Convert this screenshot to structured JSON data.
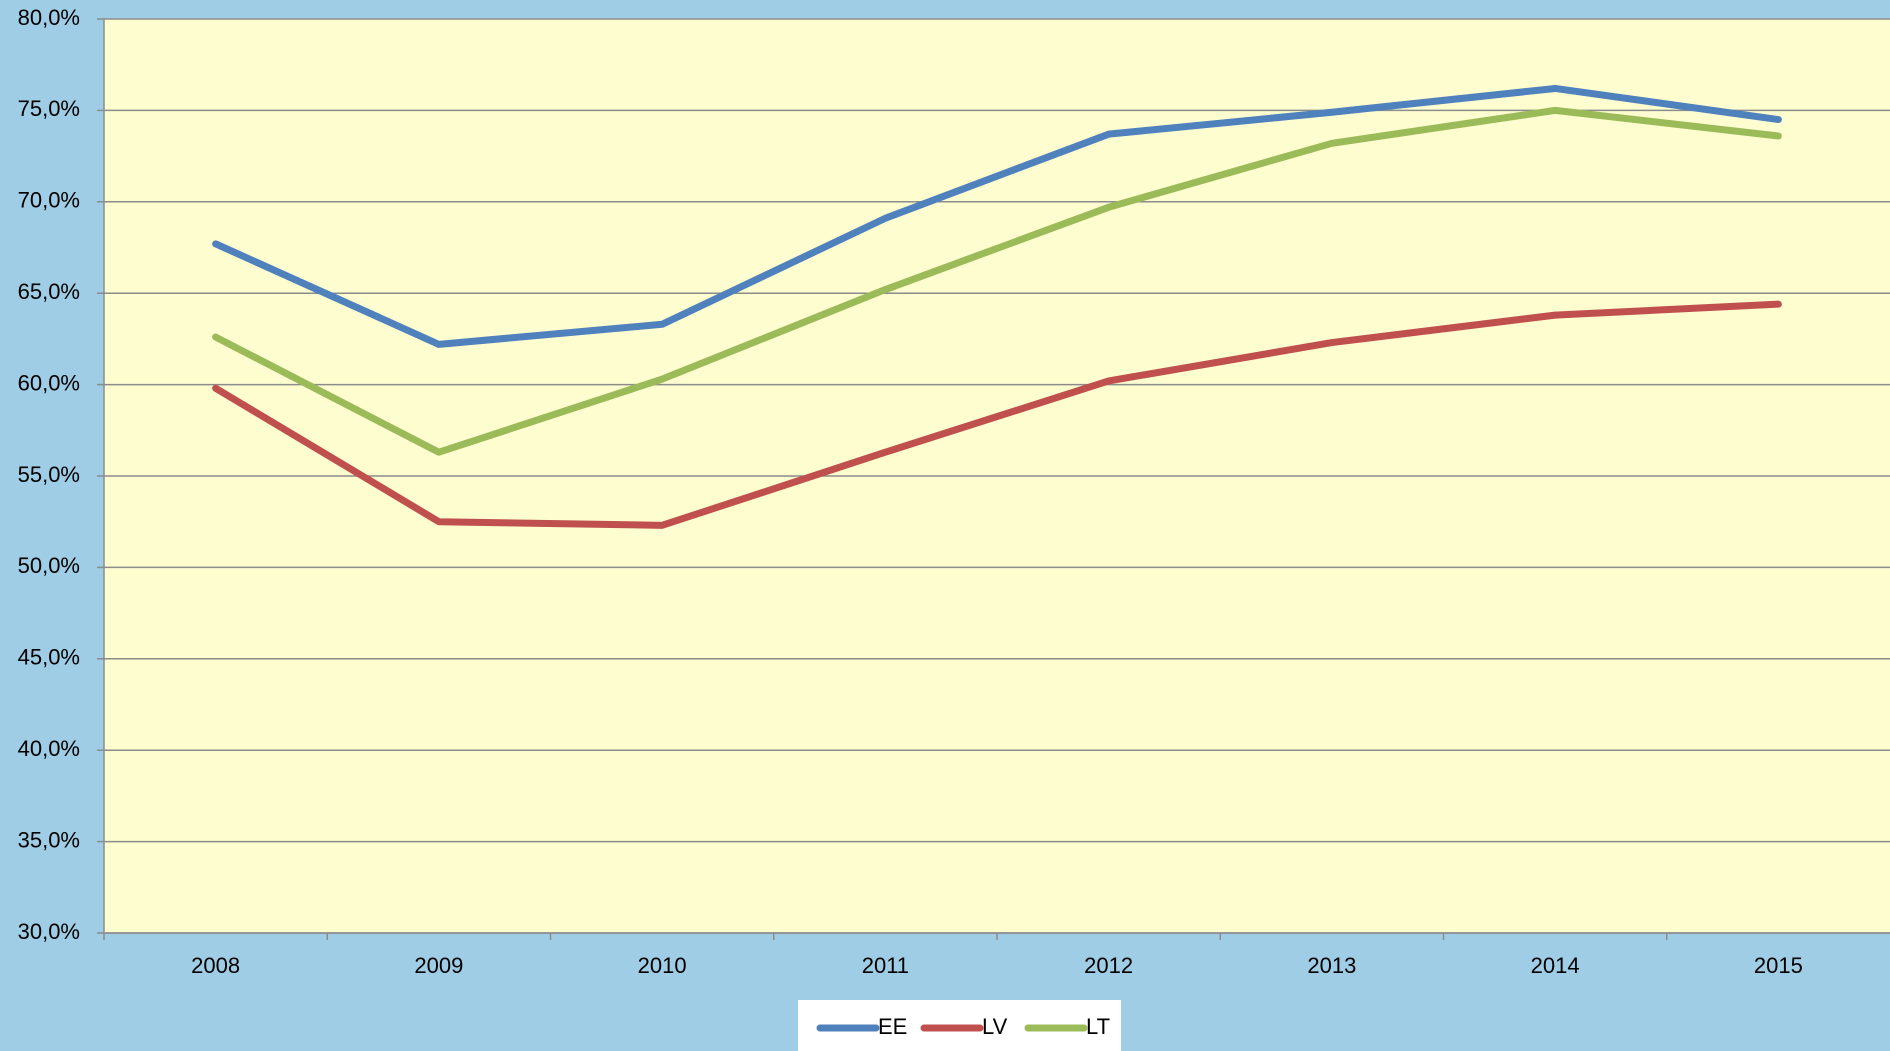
{
  "chart_data": {
    "type": "line",
    "categories": [
      "2008",
      "2009",
      "2010",
      "2011",
      "2012",
      "2013",
      "2014",
      "2015"
    ],
    "series": [
      {
        "name": "EE",
        "color": "#4f81bd",
        "values": [
          67.7,
          62.2,
          63.3,
          69.1,
          73.7,
          74.9,
          76.2,
          74.5
        ]
      },
      {
        "name": "LV",
        "color": "#c0504d",
        "values": [
          59.8,
          52.5,
          52.3,
          56.3,
          60.2,
          62.3,
          63.8,
          64.4
        ]
      },
      {
        "name": "LT",
        "color": "#9bbb59",
        "values": [
          62.6,
          56.3,
          60.3,
          65.2,
          69.7,
          73.2,
          75.0,
          73.6
        ]
      }
    ],
    "ylim": [
      30,
      80
    ],
    "yticks": [
      {
        "value": 30,
        "label": "30,0%"
      },
      {
        "value": 35,
        "label": "35,0%"
      },
      {
        "value": 40,
        "label": "40,0%"
      },
      {
        "value": 45,
        "label": "45,0%"
      },
      {
        "value": 50,
        "label": "50,0%"
      },
      {
        "value": 55,
        "label": "55,0%"
      },
      {
        "value": 60,
        "label": "60,0%"
      },
      {
        "value": 65,
        "label": "65,0%"
      },
      {
        "value": 70,
        "label": "70,0%"
      },
      {
        "value": 75,
        "label": "75,0%"
      },
      {
        "value": 80,
        "label": "80,0%"
      }
    ],
    "grid": true,
    "legend": "bottom"
  }
}
